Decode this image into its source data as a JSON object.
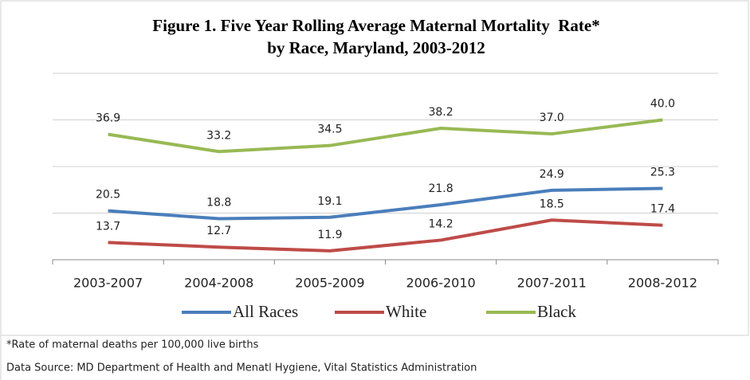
{
  "chart_data": {
    "type": "line",
    "title": [
      "Figure 1. Five Year Rolling Average Maternal Mortality  Rate*",
      "by Race, Maryland, 2003-2012"
    ],
    "categories": [
      "2003-2007",
      "2004-2008",
      "2005-2009",
      "2006-2010",
      "2007-2011",
      "2008-2012"
    ],
    "series": [
      {
        "name": "All Races",
        "color": "#4a7ebb",
        "values": [
          20.5,
          18.8,
          19.1,
          21.8,
          24.9,
          25.3
        ],
        "value_labels": [
          "20.5",
          "18.8",
          "19.1",
          "21.8",
          "24.9",
          "25.3"
        ]
      },
      {
        "name": "White",
        "color": "#be4b48",
        "values": [
          13.7,
          12.7,
          11.9,
          14.2,
          18.5,
          17.4
        ],
        "value_labels": [
          "13.7",
          "12.7",
          "11.9",
          "14.2",
          "18.5",
          "17.4"
        ]
      },
      {
        "name": "Black",
        "color": "#98b954",
        "values": [
          36.9,
          33.2,
          34.5,
          38.2,
          37.0,
          40.0
        ],
        "value_labels": [
          "36.9",
          "33.2",
          "34.5",
          "38.2",
          "37.0",
          "40.0"
        ]
      }
    ],
    "ylim": [
      10,
      50
    ],
    "yticks": [
      10,
      20,
      30,
      40,
      50
    ],
    "grid": true,
    "legend": "bottom",
    "notes": [
      "*Rate of maternal deaths per 100,000 live births",
      "Data Source: MD Department of Health and Menatl Hygiene, Vital Statistics Administration"
    ]
  }
}
